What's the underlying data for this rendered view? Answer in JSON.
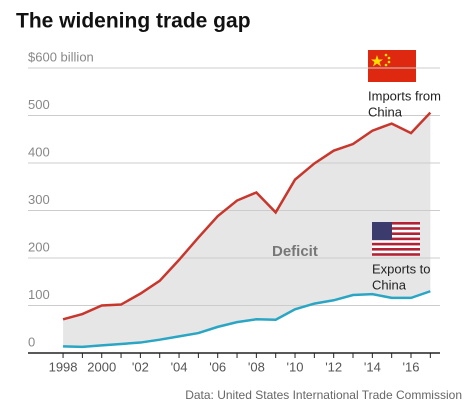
{
  "chart_data": {
    "type": "line",
    "title": "The widening trade gap",
    "source": "Data: United States International Trade Commission",
    "x": [
      1998,
      1999,
      2000,
      2001,
      2002,
      2003,
      2004,
      2005,
      2006,
      2007,
      2008,
      2009,
      2010,
      2011,
      2012,
      2013,
      2014,
      2015,
      2016,
      2017
    ],
    "series": [
      {
        "name": [
          "Imports from",
          "China"
        ],
        "color": "#c8372d",
        "values": [
          71,
          82,
          100,
          102,
          125,
          152,
          196,
          243,
          288,
          321,
          338,
          296,
          365,
          399,
          426,
          440,
          468,
          483,
          463,
          506
        ]
      },
      {
        "name": [
          "Exports to",
          "China"
        ],
        "color": "#2aa6c4",
        "values": [
          14,
          13,
          16,
          19,
          22,
          28,
          35,
          42,
          55,
          65,
          71,
          70,
          92,
          104,
          111,
          122,
          124,
          116,
          116,
          130
        ]
      }
    ],
    "fill_label": "Deficit",
    "fill_color": "#e6e6e6",
    "xlim": [
      1996.6,
      2017.5
    ],
    "xticks": [
      {
        "value": 1998,
        "label": "1998"
      },
      {
        "value": 2000,
        "label": "2000"
      },
      {
        "value": 2002,
        "label": "'02"
      },
      {
        "value": 2004,
        "label": "'04"
      },
      {
        "value": 2006,
        "label": "'06"
      },
      {
        "value": 2008,
        "label": "'08"
      },
      {
        "value": 2010,
        "label": "'10"
      },
      {
        "value": 2012,
        "label": "'12"
      },
      {
        "value": 2014,
        "label": "'14"
      },
      {
        "value": 2016,
        "label": "'16"
      }
    ],
    "ylim": [
      0,
      600
    ],
    "yticks": [
      0,
      100,
      200,
      300,
      400,
      500,
      {
        "value": 600,
        "label": "$600 billion"
      }
    ],
    "grid": true
  }
}
